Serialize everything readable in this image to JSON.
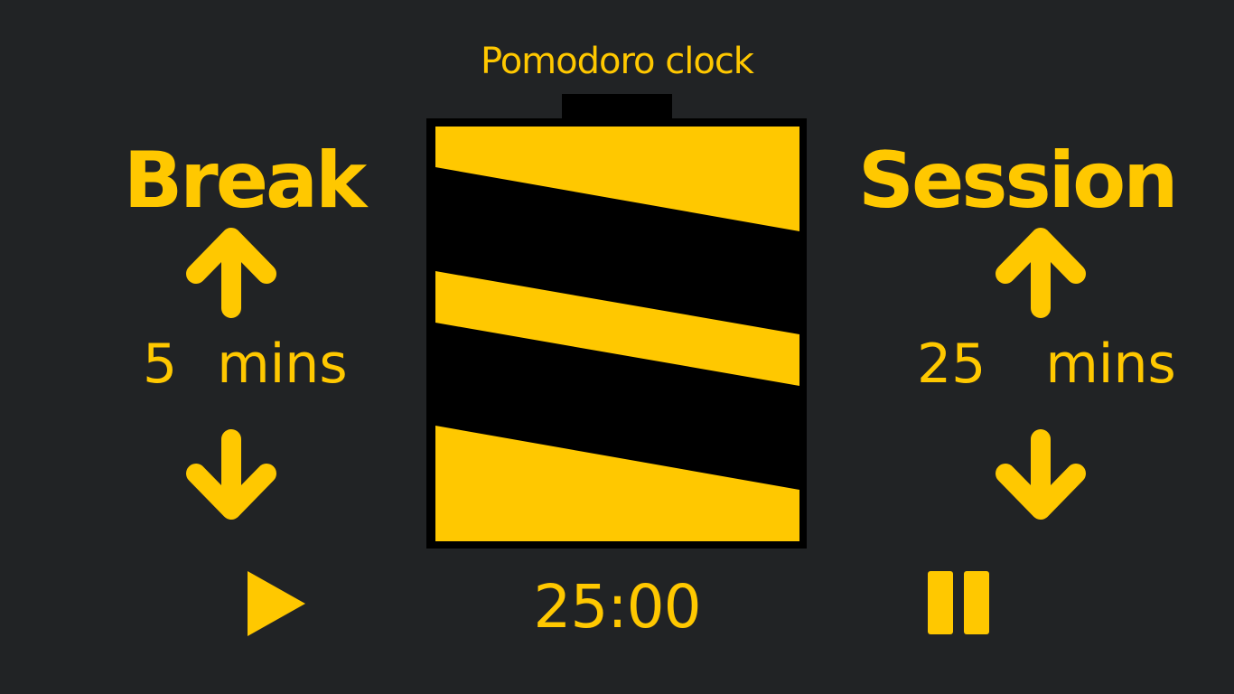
{
  "app": {
    "title": "Pomodoro clock"
  },
  "break_panel": {
    "label": "Break",
    "value": "5",
    "unit": "mins",
    "increment_icon": "arrow-up-icon",
    "decrement_icon": "arrow-down-icon"
  },
  "session_panel": {
    "label": "Session",
    "value": "25",
    "unit": "mins",
    "increment_icon": "arrow-up-icon",
    "decrement_icon": "arrow-down-icon"
  },
  "timer": {
    "display": "25:00"
  },
  "controls": {
    "play_icon": "play-icon",
    "pause_icon": "pause-icon"
  },
  "colors": {
    "background": "#212325",
    "accent": "#ffc800",
    "clock_fill": "#000000"
  }
}
